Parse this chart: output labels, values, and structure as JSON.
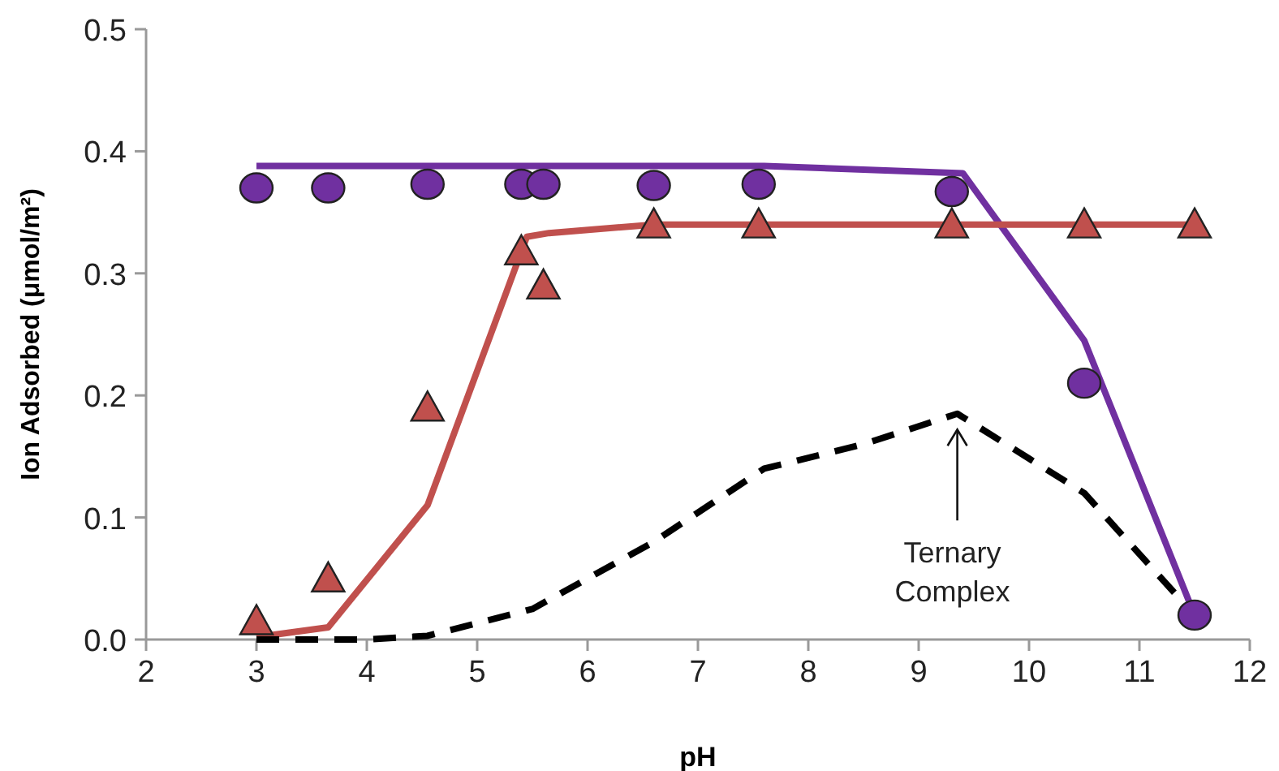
{
  "chart_data": {
    "type": "line",
    "xlabel": "pH",
    "ylabel": "Ion Adsorbed (μmol/m²)",
    "xlim": [
      2,
      12
    ],
    "xticks": [
      2,
      3,
      4,
      5,
      6,
      7,
      8,
      9,
      10,
      11,
      12
    ],
    "ylim": [
      0,
      0.5
    ],
    "yticks": [
      {
        "value": 0,
        "label": "0.0"
      },
      {
        "value": 0.1,
        "label": "0.1"
      },
      {
        "value": 0.2,
        "label": "0.2"
      },
      {
        "value": 0.3,
        "label": "0.3"
      },
      {
        "value": 0.4,
        "label": "0.4"
      },
      {
        "value": 0.5,
        "label": "0.5"
      }
    ],
    "series": [
      {
        "color": "#7030a0",
        "marker": "none",
        "line_style": "solid",
        "x": [
          3,
          7.6,
          9.4,
          10.5,
          11.5
        ],
        "values": [
          0.388,
          0.388,
          0.382,
          0.245,
          0.02
        ]
      },
      {
        "color": "#c0504d",
        "marker": "none",
        "line_style": "solid",
        "x": [
          3,
          3.65,
          4.55,
          5.45,
          5.65,
          6.6,
          11.5
        ],
        "values": [
          0.002,
          0.01,
          0.11,
          0.33,
          0.333,
          0.34,
          0.34
        ]
      },
      {
        "color": "#000000",
        "marker": "none",
        "line_style": "dashed",
        "x": [
          3,
          4,
          4.55,
          5.5,
          6.6,
          7.6,
          8.5,
          9.35,
          10.5,
          11.5
        ],
        "values": [
          0,
          0,
          0.003,
          0.025,
          0.08,
          0.14,
          0.16,
          0.185,
          0.12,
          0.02
        ]
      },
      {
        "type": "scatter",
        "color": "#7030a0",
        "marker": "circle",
        "x": [
          3,
          3.65,
          4.55,
          5.4,
          5.6,
          6.6,
          7.55,
          9.3,
          10.5,
          11.5
        ],
        "values": [
          0.37,
          0.37,
          0.373,
          0.373,
          0.373,
          0.372,
          0.373,
          0.367,
          0.21,
          0.02
        ]
      },
      {
        "type": "scatter",
        "color": "#c0504d",
        "marker": "triangle",
        "x": [
          3,
          3.65,
          4.55,
          5.4,
          5.6,
          6.6,
          7.55,
          9.3,
          10.5,
          11.5
        ],
        "values": [
          0.015,
          0.05,
          0.19,
          0.318,
          0.29,
          0.34,
          0.34,
          0.34,
          0.34,
          0.34
        ]
      }
    ],
    "annotations": [
      {
        "text": "Ternary Complex",
        "x": 9.35,
        "y": 0.18
      }
    ]
  }
}
